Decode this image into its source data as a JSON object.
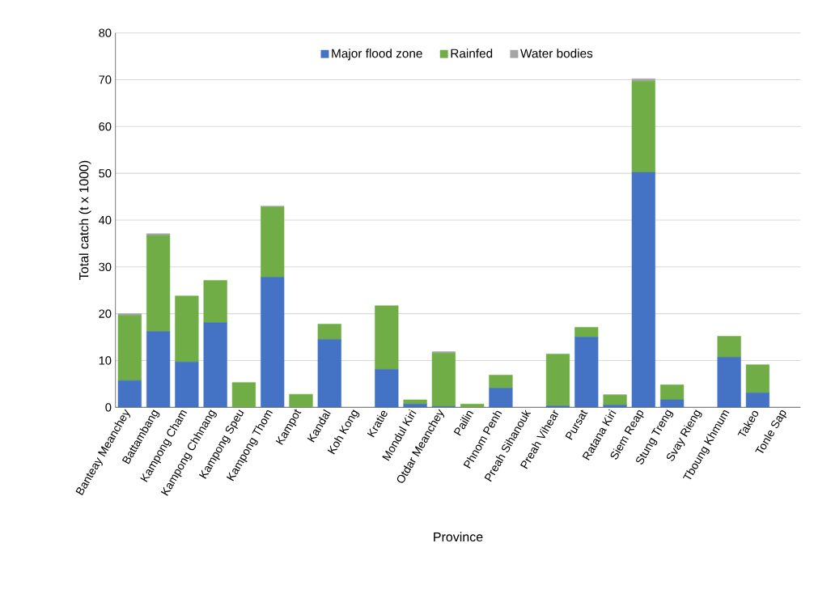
{
  "chart_data": {
    "type": "bar",
    "stacked": true,
    "xlabel": "Province",
    "ylabel": "Total catch (t x 1000)",
    "categories": [
      "Banteay Meanchey",
      "Battambang",
      "Kampong Cham",
      "Kampong Chhnang",
      "Kampong Speu",
      "Kampong Thom",
      "Kampot",
      "Kandal",
      "Koh Kong",
      "Kratie",
      "Mondul Kiri",
      "Otdar Meanchey",
      "Pailin",
      "Phnom Penh",
      "Preah Sihanouk",
      "Preah Vihear",
      "Pursat",
      "Ratana Kiri",
      "Siem Reap",
      "Stung Treng",
      "Svay Rieng",
      "Tboung Khmum",
      "Takeo",
      "Tonle Sap"
    ],
    "series": [
      {
        "name": "Major flood zone",
        "color": "#4472c4",
        "values": [
          5.7,
          16.2,
          9.7,
          18.1,
          0,
          27.8,
          0,
          14.5,
          0,
          8.1,
          0.7,
          0.2,
          0,
          4.1,
          0,
          0.3,
          15.0,
          0.5,
          50.2,
          1.6,
          0,
          10.7,
          3.1,
          0
        ]
      },
      {
        "name": "Rainfed",
        "color": "#70ad47",
        "values": [
          14.0,
          20.5,
          14.1,
          9.0,
          5.3,
          15.0,
          2.8,
          3.3,
          0,
          13.6,
          0.9,
          11.4,
          0.7,
          2.8,
          0,
          11.1,
          2.1,
          2.1,
          19.5,
          3.2,
          0,
          4.5,
          6.0,
          0
        ]
      },
      {
        "name": "Water bodies",
        "color": "#a5a5a5",
        "values": [
          0.3,
          0.4,
          0,
          0,
          0,
          0.2,
          0,
          0,
          0,
          0,
          0,
          0.3,
          0,
          0,
          0,
          0,
          0,
          0.1,
          0.5,
          0,
          0,
          0,
          0,
          0
        ]
      }
    ],
    "ylim": [
      0,
      80
    ],
    "yticks": [
      0,
      10,
      20,
      30,
      40,
      50,
      60,
      70,
      80
    ],
    "grid": "y",
    "legend": "top"
  }
}
